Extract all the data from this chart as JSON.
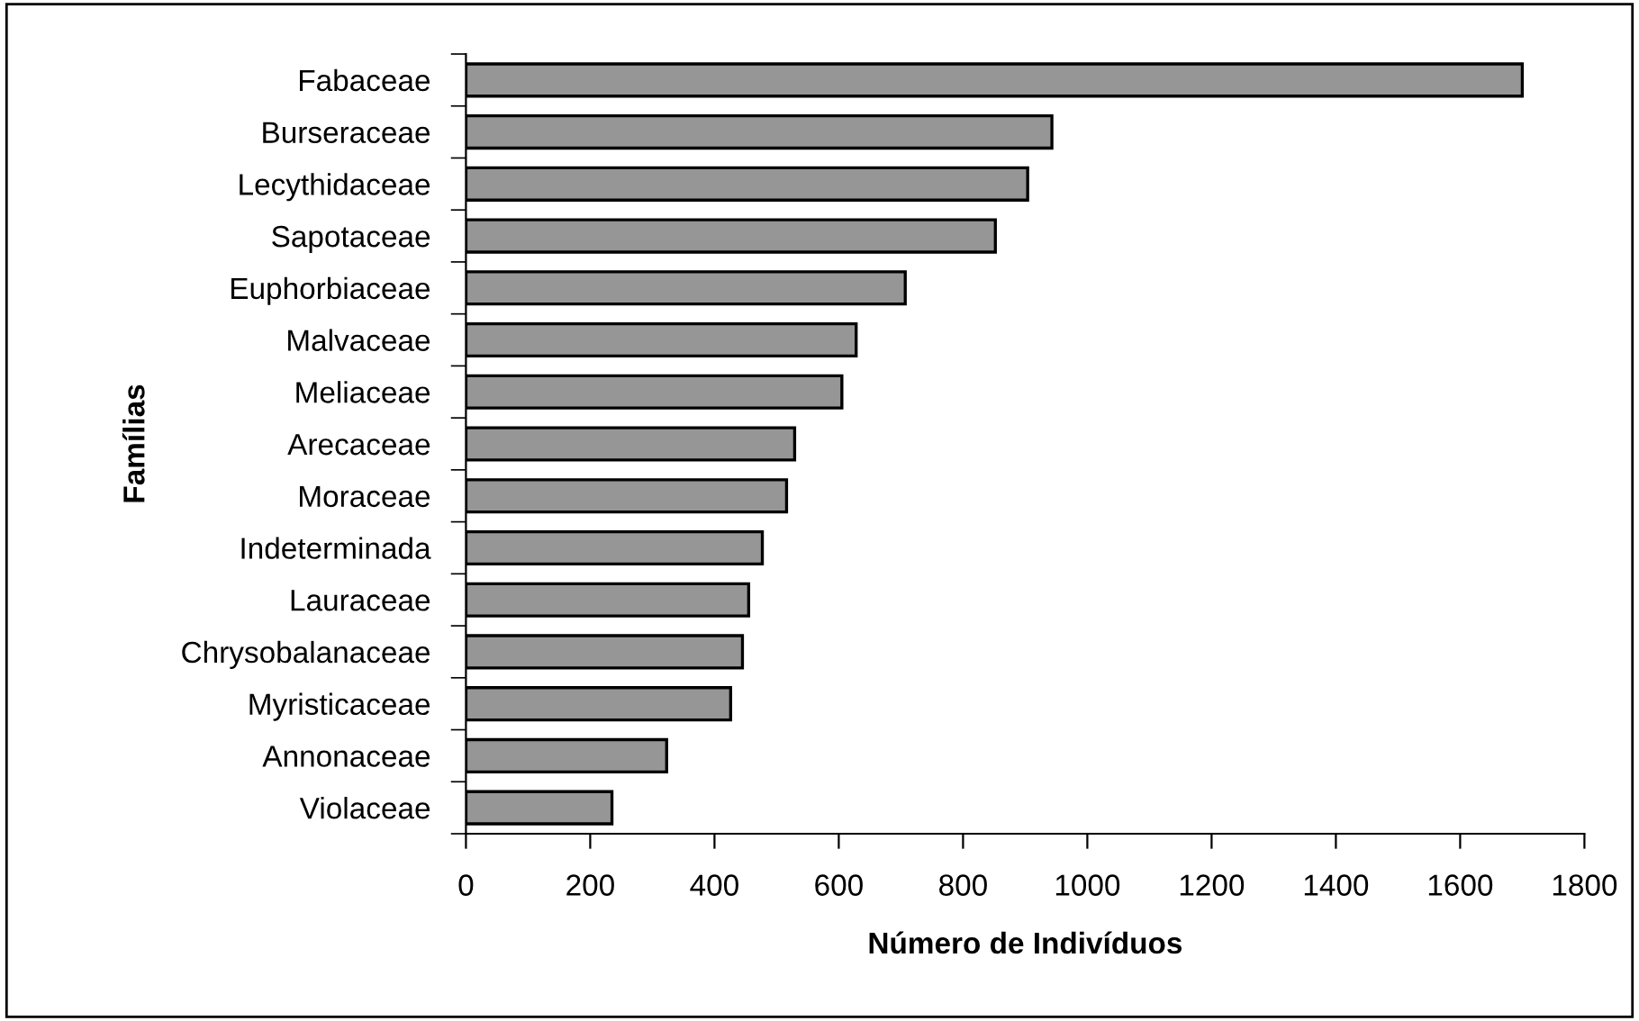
{
  "chart_data": {
    "type": "bar",
    "orientation": "horizontal",
    "xlabel": "Número de Indivíduos",
    "ylabel": "Famílias",
    "categories": [
      "Fabaceae",
      "Burseraceae",
      "Lecythidaceae",
      "Sapotaceae",
      "Euphorbiaceae",
      "Malvaceae",
      "Meliaceae",
      "Arecaceae",
      "Moraceae",
      "Indeterminada",
      "Lauraceae",
      "Chrysobalanaceae",
      "Myristicaceae",
      "Annonaceae",
      "Violaceae"
    ],
    "values": [
      1700,
      943,
      904,
      852,
      707,
      628,
      605,
      529,
      516,
      477,
      455,
      445,
      426,
      323,
      235
    ],
    "color": "#969696",
    "xlim": [
      0,
      1800
    ],
    "xticks": [
      0,
      200,
      400,
      600,
      800,
      1000,
      1200,
      1400,
      1600,
      1800
    ],
    "grid": false,
    "legend": false
  }
}
